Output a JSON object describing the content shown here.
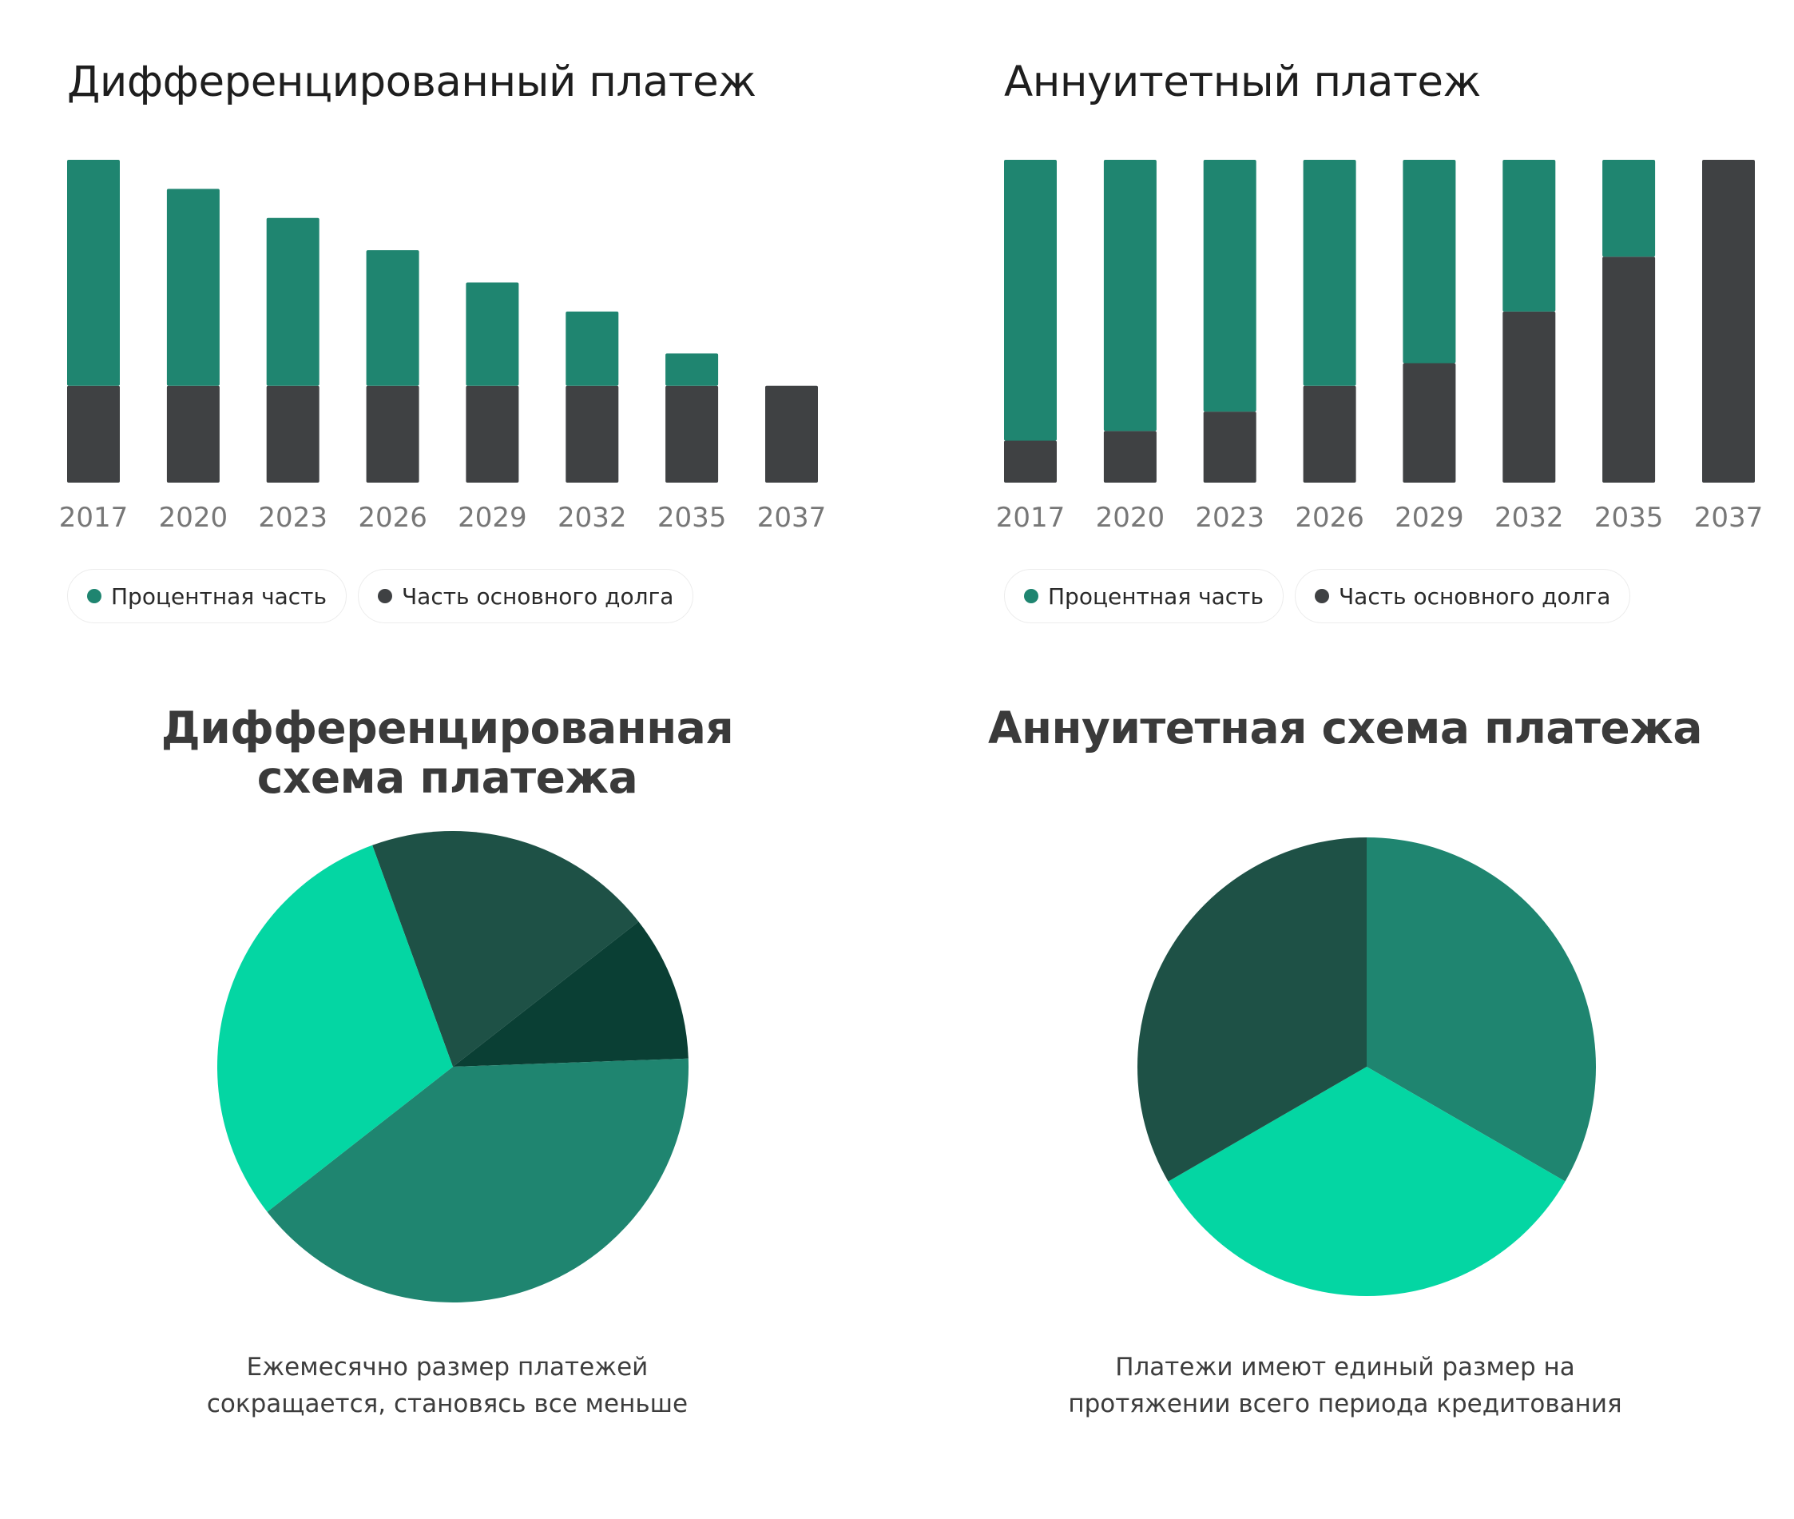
{
  "colors": {
    "interest": "#1f8570",
    "principal": "#3f4143",
    "slice_bright": "#04d6a3",
    "slice_mid": "#1f8570",
    "slice_dark": "#1e5146",
    "slice_darkest": "#0a3f34",
    "axis_text": "#777777"
  },
  "legend": {
    "interest_label": "Процентная часть",
    "principal_label": "Часть основного долга"
  },
  "panels": {
    "diff_bar": {
      "title": "Дифференцированный платеж"
    },
    "annuity_bar": {
      "title": "Аннуитетный платеж"
    },
    "diff_pie": {
      "title_line1": "Дифференцированная",
      "title_line2": "схема платежа",
      "caption_line1": "Ежемесячно размер платежей",
      "caption_line2": "сокращается, становясь все меньше"
    },
    "annuity_pie": {
      "title_line1": "Аннуитетная схема платежа",
      "caption_line1": "Платежи имеют единый размер на",
      "caption_line2": "протяжении всего периода кредитования"
    }
  },
  "chart_data": [
    {
      "type": "bar",
      "stacked": true,
      "title": "Дифференцированный платеж",
      "categories": [
        "2017",
        "2020",
        "2023",
        "2026",
        "2029",
        "2032",
        "2035",
        "2037"
      ],
      "series": [
        {
          "name": "Часть основного долга",
          "color": "#3f4143",
          "values": [
            30,
            30,
            30,
            30,
            30,
            30,
            30,
            30
          ]
        },
        {
          "name": "Процентная часть",
          "color": "#1f8570",
          "values": [
            70,
            61,
            52,
            42,
            32,
            23,
            10,
            0
          ]
        }
      ],
      "ylim": [
        0,
        100
      ],
      "grid": false,
      "legend": "bottom-left"
    },
    {
      "type": "bar",
      "stacked": true,
      "title": "Аннуитетный платеж",
      "categories": [
        "2017",
        "2020",
        "2023",
        "2026",
        "2029",
        "2032",
        "2035",
        "2037"
      ],
      "series": [
        {
          "name": "Часть основного долга",
          "color": "#3f4143",
          "values": [
            13,
            16,
            22,
            30,
            37,
            53,
            70,
            100
          ]
        },
        {
          "name": "Процентная часть",
          "color": "#1f8570",
          "values": [
            87,
            84,
            78,
            70,
            63,
            47,
            30,
            0
          ]
        }
      ],
      "ylim": [
        0,
        100
      ],
      "grid": false,
      "legend": "bottom-left"
    },
    {
      "type": "pie",
      "title": "Дифференцированная схема платежа",
      "slices": [
        {
          "value": 20,
          "color": "#1e5146"
        },
        {
          "value": 10,
          "color": "#0a3f34"
        },
        {
          "value": 40,
          "color": "#1f8570"
        },
        {
          "value": 30,
          "color": "#04d6a3"
        }
      ],
      "start_angle_deg": -20
    },
    {
      "type": "pie",
      "title": "Аннуитетная схема платежа",
      "slices": [
        {
          "value": 33.33,
          "color": "#1f8570"
        },
        {
          "value": 33.33,
          "color": "#04d6a3"
        },
        {
          "value": 33.34,
          "color": "#1e5146"
        }
      ],
      "start_angle_deg": 0
    }
  ]
}
